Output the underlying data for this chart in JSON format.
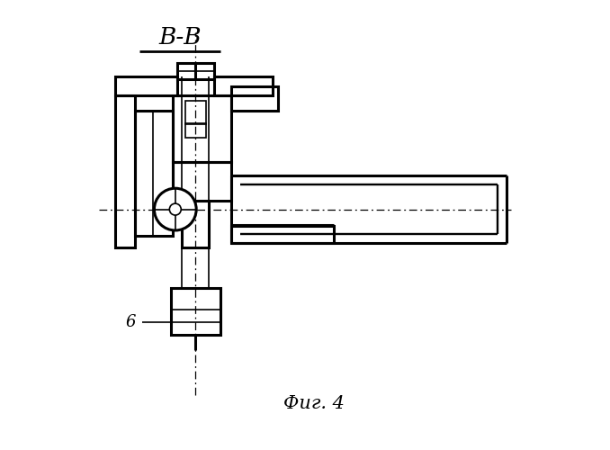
{
  "title": "В-В",
  "caption": "Фиг. 4",
  "label_6": "6",
  "bg_color": "#ffffff",
  "line_color": "#000000",
  "lw": 2.2,
  "lw_thin": 1.2,
  "lw_med": 1.7,
  "fig_width": 6.78,
  "fig_height": 5.0,
  "dpi": 100,
  "xlim": [
    0,
    10
  ],
  "ylim": [
    0,
    10
  ]
}
